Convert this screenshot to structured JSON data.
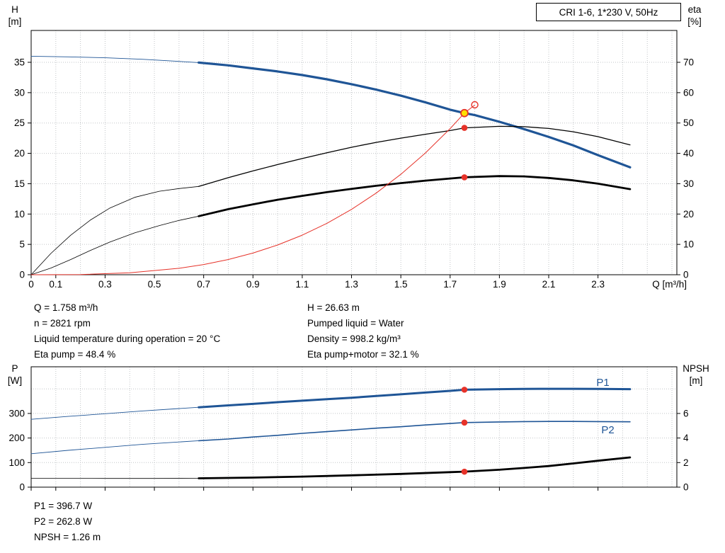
{
  "colors": {
    "curve_blue": "#1f5596",
    "curve_black": "#000000",
    "curve_red": "#e63229",
    "marker_yellow": "#ffdf00",
    "grid": "#c2c5c8",
    "axis": "#000000"
  },
  "info_block": {
    "left": [
      "Q = 1.758 m³/h",
      "n = 2821 rpm",
      "Liquid temperature during operation = 20 °C",
      "Eta pump = 48.4 %"
    ],
    "right": [
      "H = 26.63 m",
      "Pumped liquid = Water",
      "Density = 998.2 kg/m³",
      "Eta pump+motor = 32.1 %"
    ]
  },
  "results_block": [
    "P1 = 396.7 W",
    "P2 = 262.8 W",
    "NPSH = 1.26 m"
  ],
  "chart_data": [
    {
      "type": "line",
      "name": "head-efficiency-chart",
      "title": "CRI 1-6, 1*230 V, 50Hz",
      "x_axis": {
        "label": "Q [m³/h]",
        "min": 0,
        "max": 2.62,
        "ticks": [
          0,
          0.1,
          0.3,
          0.5,
          0.7,
          0.9,
          1.1,
          1.3,
          1.5,
          1.7,
          1.9,
          2.1,
          2.3
        ]
      },
      "left_axis": {
        "label": [
          "H",
          "[m]"
        ],
        "unit": "m",
        "min": 0,
        "max": 40.25,
        "ticks": [
          0,
          5,
          10,
          15,
          20,
          25,
          30,
          35
        ],
        "grid_ticks": [
          5,
          10,
          15,
          20,
          25,
          30,
          35
        ]
      },
      "right_axis": {
        "label": [
          "eta",
          "[%]"
        ],
        "unit": "%",
        "min": 0,
        "max": 80.5,
        "ticks": [
          0,
          10,
          20,
          30,
          40,
          50,
          60,
          70
        ]
      },
      "duty_point": {
        "Q_m3h": 1.758,
        "H_m": 26.63,
        "eta_pump_pct": 48.4,
        "eta_pump_motor_pct": 32.1
      },
      "series": [
        {
          "name": "h-q-lowflow",
          "axis": "left",
          "color": "blue",
          "width": 0.9,
          "points": [
            [
              0,
              36.0
            ],
            [
              0.15,
              35.9
            ],
            [
              0.3,
              35.75
            ],
            [
              0.45,
              35.5
            ],
            [
              0.6,
              35.15
            ],
            [
              0.68,
              34.95
            ]
          ]
        },
        {
          "name": "h-q",
          "axis": "left",
          "color": "blue",
          "width": 3.2,
          "points": [
            [
              0.68,
              34.95
            ],
            [
              0.8,
              34.5
            ],
            [
              0.9,
              34.0
            ],
            [
              1.0,
              33.5
            ],
            [
              1.1,
              32.9
            ],
            [
              1.2,
              32.2
            ],
            [
              1.3,
              31.4
            ],
            [
              1.4,
              30.5
            ],
            [
              1.5,
              29.5
            ],
            [
              1.6,
              28.4
            ],
            [
              1.7,
              27.2
            ],
            [
              1.758,
              26.63
            ],
            [
              1.8,
              26.3
            ],
            [
              1.9,
              25.2
            ],
            [
              2.0,
              24.0
            ],
            [
              2.1,
              22.7
            ],
            [
              2.2,
              21.3
            ],
            [
              2.3,
              19.7
            ],
            [
              2.43,
              17.7
            ]
          ]
        },
        {
          "name": "eta-pump-lowflow",
          "axis": "right",
          "color": "black",
          "width": 0.8,
          "points": [
            [
              0,
              0
            ],
            [
              0.08,
              7
            ],
            [
              0.16,
              13
            ],
            [
              0.24,
              18
            ],
            [
              0.32,
              22
            ],
            [
              0.42,
              25.5
            ],
            [
              0.52,
              27.5
            ],
            [
              0.6,
              28.4
            ],
            [
              0.68,
              29.1
            ]
          ]
        },
        {
          "name": "eta-pump",
          "axis": "right",
          "color": "black",
          "width": 1.3,
          "points": [
            [
              0.68,
              29.1
            ],
            [
              0.8,
              32.0
            ],
            [
              0.9,
              34.2
            ],
            [
              1.0,
              36.3
            ],
            [
              1.1,
              38.3
            ],
            [
              1.2,
              40.2
            ],
            [
              1.3,
              42.0
            ],
            [
              1.4,
              43.6
            ],
            [
              1.5,
              45.0
            ],
            [
              1.6,
              46.3
            ],
            [
              1.7,
              47.5
            ],
            [
              1.758,
              48.4
            ],
            [
              1.9,
              48.9
            ],
            [
              2.0,
              48.8
            ],
            [
              2.1,
              48.2
            ],
            [
              2.2,
              47.1
            ],
            [
              2.3,
              45.5
            ],
            [
              2.43,
              42.8
            ]
          ]
        },
        {
          "name": "eta-pump-motor-lowflow",
          "axis": "right",
          "color": "black",
          "width": 0.8,
          "points": [
            [
              0,
              0
            ],
            [
              0.08,
              2.2
            ],
            [
              0.16,
              5.0
            ],
            [
              0.24,
              8.0
            ],
            [
              0.32,
              10.8
            ],
            [
              0.42,
              13.8
            ],
            [
              0.52,
              16.2
            ],
            [
              0.6,
              17.9
            ],
            [
              0.68,
              19.3
            ]
          ]
        },
        {
          "name": "eta-pump-motor",
          "axis": "right",
          "color": "black",
          "width": 2.8,
          "points": [
            [
              0.68,
              19.3
            ],
            [
              0.8,
              21.6
            ],
            [
              0.9,
              23.2
            ],
            [
              1.0,
              24.7
            ],
            [
              1.1,
              26.0
            ],
            [
              1.2,
              27.2
            ],
            [
              1.3,
              28.3
            ],
            [
              1.4,
              29.3
            ],
            [
              1.5,
              30.2
            ],
            [
              1.6,
              31.0
            ],
            [
              1.7,
              31.7
            ],
            [
              1.758,
              32.1
            ],
            [
              1.9,
              32.5
            ],
            [
              2.0,
              32.4
            ],
            [
              2.1,
              31.9
            ],
            [
              2.2,
              31.1
            ],
            [
              2.3,
              30.0
            ],
            [
              2.43,
              28.2
            ]
          ]
        },
        {
          "name": "system-curve",
          "axis": "left",
          "color": "red",
          "width": 1.0,
          "points": [
            [
              0,
              0
            ],
            [
              0.2,
              0.04
            ],
            [
              0.4,
              0.31
            ],
            [
              0.6,
              1.06
            ],
            [
              0.7,
              1.68
            ],
            [
              0.8,
              2.51
            ],
            [
              0.9,
              3.57
            ],
            [
              1.0,
              4.9
            ],
            [
              1.1,
              6.52
            ],
            [
              1.2,
              8.47
            ],
            [
              1.3,
              10.77
            ],
            [
              1.4,
              13.45
            ],
            [
              1.5,
              16.54
            ],
            [
              1.6,
              20.07
            ],
            [
              1.7,
              24.08
            ],
            [
              1.758,
              26.63
            ],
            [
              1.8,
              27.95
            ]
          ]
        }
      ],
      "markers": [
        {
          "kind": "open",
          "name": "rated-point-marker",
          "axis": "left",
          "q": 1.8,
          "v": 28.0
        },
        {
          "kind": "dot",
          "name": "eta-pump-point-marker",
          "axis": "right",
          "q": 1.758,
          "v": 48.4
        },
        {
          "kind": "dot",
          "name": "eta-pump-motor-point-marker",
          "axis": "right",
          "q": 1.758,
          "v": 32.1
        },
        {
          "kind": "duty",
          "name": "duty-point-marker",
          "axis": "left",
          "q": 1.758,
          "v": 26.63
        }
      ],
      "annotations": []
    },
    {
      "type": "line",
      "name": "power-npsh-chart",
      "title": "",
      "x_axis": {
        "label": "",
        "min": 0,
        "max": 2.62,
        "ticks": [
          0,
          0.1,
          0.3,
          0.5,
          0.7,
          0.9,
          1.1,
          1.3,
          1.5,
          1.7,
          1.9,
          2.1,
          2.3
        ]
      },
      "left_axis": {
        "label": [
          "P",
          "[W]"
        ],
        "unit": "W",
        "min": 0,
        "max": 490,
        "ticks": [
          0,
          100,
          200,
          300
        ],
        "grid_ticks": [
          100,
          200,
          300,
          400
        ]
      },
      "right_axis": {
        "label": [
          "NPSH",
          "[m]"
        ],
        "unit": "m",
        "min": 0,
        "max": 9.8,
        "ticks": [
          0,
          2,
          4,
          6
        ]
      },
      "duty_point": {
        "Q_m3h": 1.758,
        "P1_W": 396.7,
        "P2_W": 262.8,
        "NPSH_m": 1.26
      },
      "series": [
        {
          "name": "p1-lowflow",
          "axis": "left",
          "color": "blue",
          "width": 0.9,
          "points": [
            [
              0,
              276
            ],
            [
              0.15,
              288
            ],
            [
              0.3,
              299
            ],
            [
              0.45,
              310
            ],
            [
              0.6,
              320
            ],
            [
              0.68,
              325
            ]
          ]
        },
        {
          "name": "p1",
          "axis": "left",
          "color": "blue",
          "width": 3.0,
          "points": [
            [
              0.68,
              325
            ],
            [
              0.8,
              333
            ],
            [
              0.9,
              339
            ],
            [
              1.0,
              346
            ],
            [
              1.1,
              352
            ],
            [
              1.2,
              358
            ],
            [
              1.3,
              364
            ],
            [
              1.4,
              371
            ],
            [
              1.5,
              378
            ],
            [
              1.6,
              385
            ],
            [
              1.7,
              392
            ],
            [
              1.758,
              396.7
            ],
            [
              1.9,
              399
            ],
            [
              2.0,
              400
            ],
            [
              2.1,
              400.5
            ],
            [
              2.2,
              400.5
            ],
            [
              2.3,
              400
            ],
            [
              2.43,
              399
            ]
          ]
        },
        {
          "name": "p2-lowflow",
          "axis": "left",
          "color": "blue",
          "width": 0.9,
          "points": [
            [
              0,
              136
            ],
            [
              0.15,
              150
            ],
            [
              0.3,
              162
            ],
            [
              0.45,
              174
            ],
            [
              0.6,
              184
            ],
            [
              0.68,
              189
            ]
          ]
        },
        {
          "name": "p2",
          "axis": "left",
          "color": "blue",
          "width": 1.6,
          "points": [
            [
              0.68,
              189
            ],
            [
              0.8,
              196
            ],
            [
              0.9,
              204
            ],
            [
              1.0,
              211
            ],
            [
              1.1,
              219
            ],
            [
              1.2,
              226
            ],
            [
              1.3,
              233
            ],
            [
              1.4,
              240
            ],
            [
              1.5,
              246
            ],
            [
              1.6,
              253
            ],
            [
              1.7,
              259
            ],
            [
              1.758,
              262.8
            ],
            [
              1.9,
              265.5
            ],
            [
              2.0,
              267
            ],
            [
              2.1,
              267.5
            ],
            [
              2.2,
              267.5
            ],
            [
              2.3,
              267
            ],
            [
              2.43,
              266
            ]
          ]
        },
        {
          "name": "npsh-lowflow",
          "axis": "right",
          "color": "black",
          "width": 0.8,
          "points": [
            [
              0,
              0.72
            ],
            [
              0.3,
              0.71
            ],
            [
              0.5,
              0.71
            ],
            [
              0.68,
              0.72
            ]
          ]
        },
        {
          "name": "npsh",
          "axis": "right",
          "color": "black",
          "width": 2.8,
          "points": [
            [
              0.68,
              0.72
            ],
            [
              0.9,
              0.78
            ],
            [
              1.1,
              0.86
            ],
            [
              1.3,
              0.96
            ],
            [
              1.5,
              1.08
            ],
            [
              1.7,
              1.22
            ],
            [
              1.758,
              1.26
            ],
            [
              1.9,
              1.42
            ],
            [
              2.0,
              1.56
            ],
            [
              2.1,
              1.72
            ],
            [
              2.2,
              1.93
            ],
            [
              2.3,
              2.15
            ],
            [
              2.43,
              2.42
            ]
          ]
        }
      ],
      "markers": [
        {
          "kind": "dot",
          "name": "p1-point-marker",
          "axis": "left",
          "q": 1.758,
          "v": 396.7
        },
        {
          "kind": "dot",
          "name": "p2-point-marker",
          "axis": "left",
          "q": 1.758,
          "v": 262.8
        },
        {
          "kind": "dot",
          "name": "npsh-point-marker",
          "axis": "right",
          "q": 1.758,
          "v": 1.26
        }
      ],
      "annotations": [
        {
          "text": "P1",
          "axis": "left",
          "q": 2.32,
          "v": 412,
          "color": "blue"
        },
        {
          "text": "P2",
          "axis": "left",
          "q": 2.34,
          "v": 219,
          "color": "blue"
        }
      ]
    }
  ]
}
